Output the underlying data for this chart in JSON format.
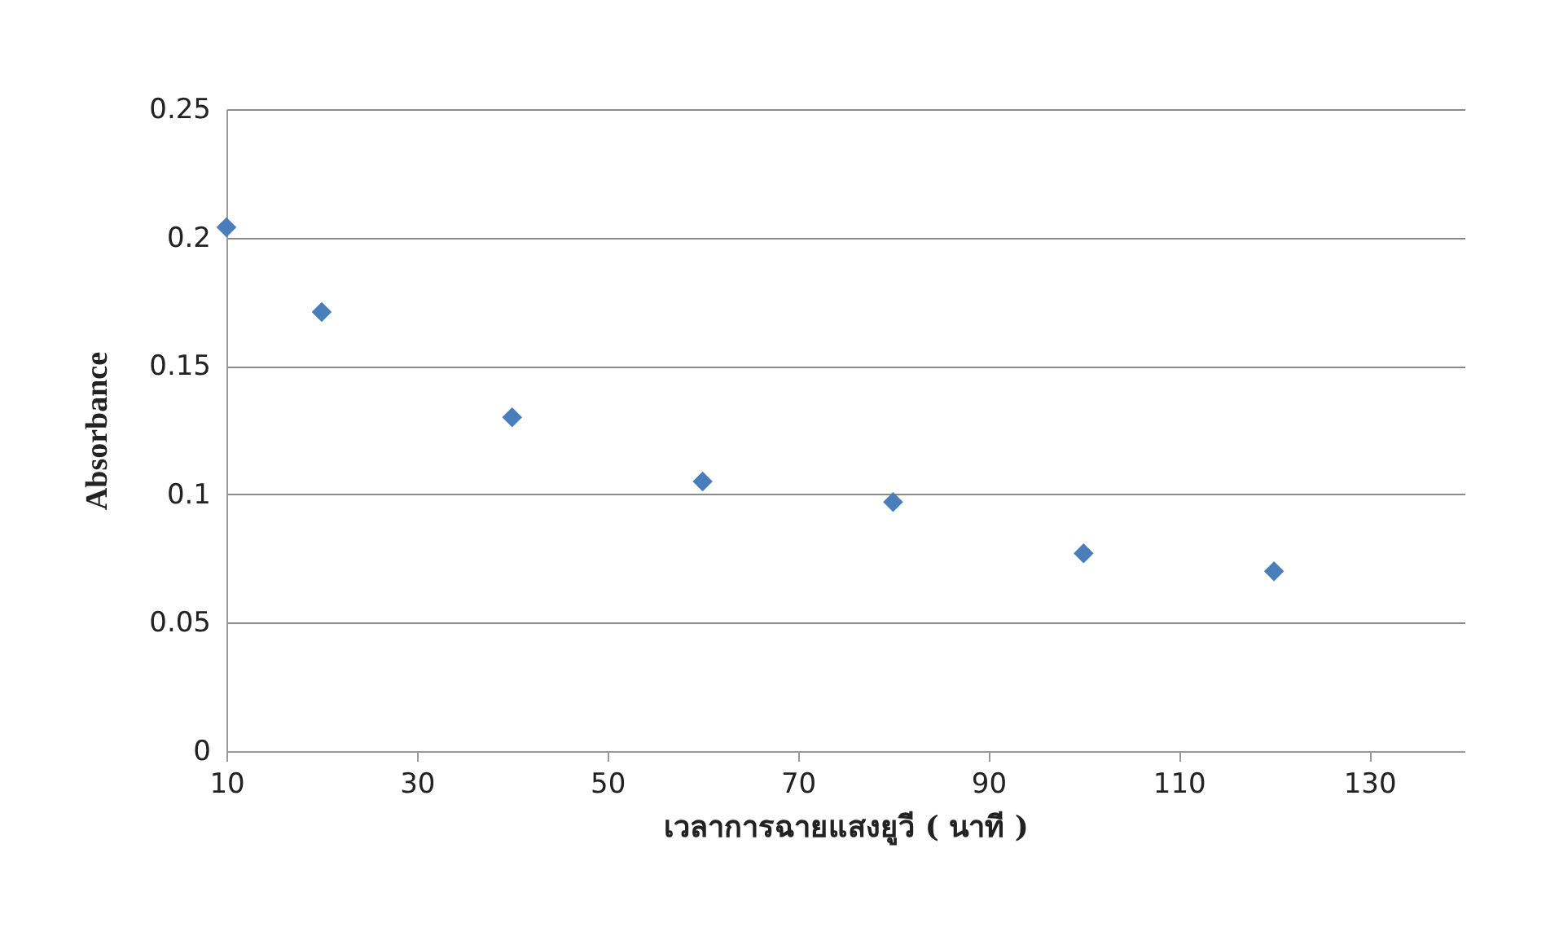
{
  "chart_data": {
    "type": "scatter",
    "xlabel": "เวลาการฉายแสงยูวี ( นาที )",
    "ylabel": "Absorbance",
    "x": [
      10,
      20,
      40,
      60,
      80,
      100,
      120
    ],
    "series": [
      {
        "color": "#4a7ebb",
        "values": [
          0.204,
          0.171,
          0.13,
          0.105,
          0.097,
          0.077,
          0.07
        ]
      }
    ],
    "xlim": [
      10,
      140
    ],
    "xticks": [
      10,
      30,
      50,
      70,
      90,
      110,
      130
    ],
    "ylim": [
      0,
      0.25
    ],
    "yticks": [
      0,
      0.05,
      0.1,
      0.15,
      0.2,
      0.25
    ],
    "grid": "y",
    "marker": "diamond"
  }
}
